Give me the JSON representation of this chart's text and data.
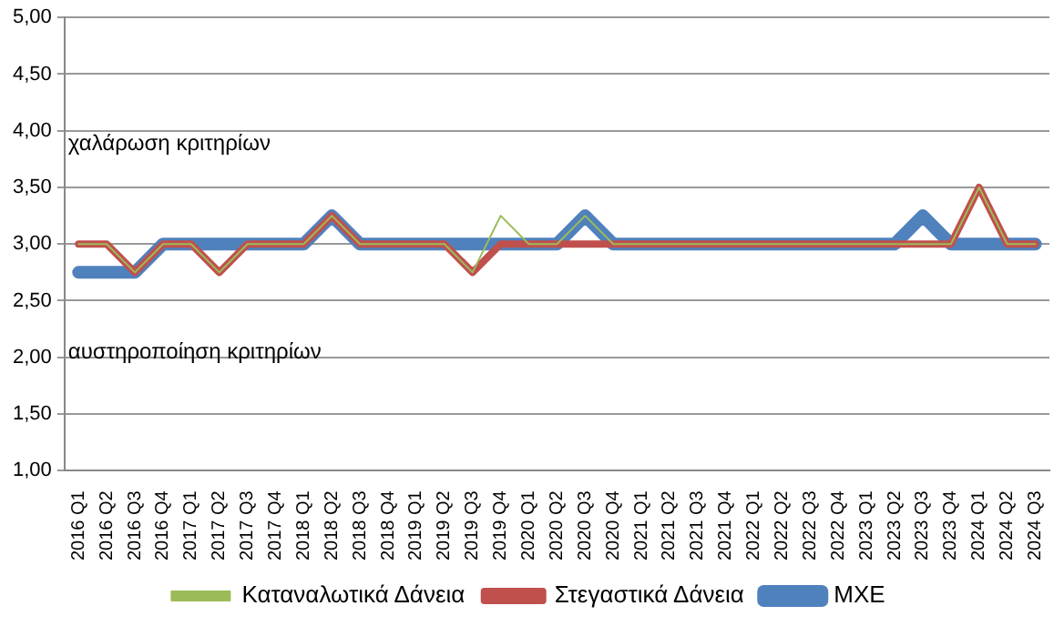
{
  "chart_data": {
    "type": "line",
    "categories": [
      "2016 Q1",
      "2016 Q2",
      "2016 Q3",
      "2016 Q4",
      "2017 Q1",
      "2017 Q2",
      "2017 Q3",
      "2017 Q4",
      "2018 Q1",
      "2018 Q2",
      "2018 Q3",
      "2018 Q4",
      "2019 Q1",
      "2019 Q2",
      "2019 Q3",
      "2019 Q4",
      "2020 Q1",
      "2020 Q2",
      "2020 Q3",
      "2020 Q4",
      "2021 Q1",
      "2021 Q2",
      "2021 Q3",
      "2021 Q4",
      "2022 Q1",
      "2022 Q2",
      "2022 Q3",
      "2022 Q4",
      "2023 Q1",
      "2023 Q2",
      "2023 Q3",
      "2023 Q4",
      "2024 Q1",
      "2024 Q2",
      "2024 Q3"
    ],
    "series": [
      {
        "name": "ΜΧΕ",
        "color": "#4f81bd",
        "values": [
          2.75,
          2.75,
          2.75,
          3,
          3,
          3,
          3,
          3,
          3,
          3.25,
          3,
          3,
          3,
          3,
          3,
          3,
          3,
          3,
          3.25,
          3,
          3,
          3,
          3,
          3,
          3,
          3,
          3,
          3,
          3,
          3,
          3.25,
          3,
          3,
          3,
          3
        ]
      },
      {
        "name": "Στεγαστικά Δάνεια",
        "color": "#c0504d",
        "values": [
          3,
          3,
          2.75,
          3,
          3,
          2.75,
          3,
          3,
          3,
          3.25,
          3,
          3,
          3,
          3,
          2.75,
          3,
          3,
          3,
          3,
          3,
          3,
          3,
          3,
          3,
          3,
          3,
          3,
          3,
          3,
          3,
          3,
          3,
          3.5,
          3,
          3
        ]
      },
      {
        "name": "Καταναλωτικά Δάνεια",
        "color": "#9bbb59",
        "values": [
          3,
          3,
          2.75,
          3,
          3,
          2.75,
          3,
          3,
          3,
          3.25,
          3,
          3,
          3,
          3,
          2.75,
          3.25,
          3,
          3,
          3.25,
          3,
          3,
          3,
          3,
          3,
          3,
          3,
          3,
          3,
          3,
          3,
          3,
          3,
          3.5,
          3,
          3
        ]
      }
    ],
    "ylim": [
      1,
      5
    ],
    "yticks": [
      {
        "value": 1,
        "label": "1,00"
      },
      {
        "value": 1.5,
        "label": "1,50"
      },
      {
        "value": 2,
        "label": "2,00"
      },
      {
        "value": 2.5,
        "label": "2,50"
      },
      {
        "value": 3,
        "label": "3,00"
      },
      {
        "value": 3.5,
        "label": "3,50"
      },
      {
        "value": 4,
        "label": "4,00"
      },
      {
        "value": 4.5,
        "label": "4,50"
      },
      {
        "value": 5,
        "label": "5,00"
      }
    ],
    "grid": "y",
    "legend": "bottom",
    "marker": "none",
    "line_style": "solid",
    "annotations": [
      "χαλάρωση κριτηρίων",
      "αυστηροποίηση κριτηρίων"
    ]
  }
}
